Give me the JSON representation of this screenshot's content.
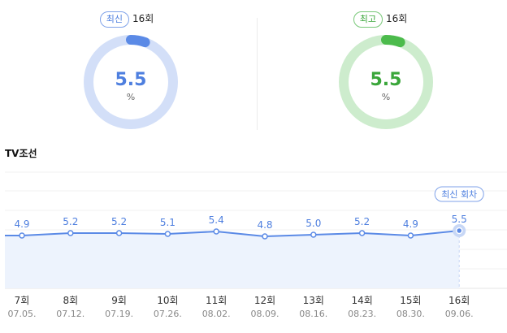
{
  "summary": {
    "latest": {
      "badge": "최신",
      "episode": "16회",
      "value": "5.5",
      "unit": "%",
      "fraction": 0.055,
      "color": "#5b8ae6",
      "track": "#d3dff8"
    },
    "best": {
      "badge": "최고",
      "episode": "16회",
      "value": "5.5",
      "unit": "%",
      "fraction": 0.055,
      "color": "#4cbb4c",
      "track": "#cdeccd"
    }
  },
  "channel": "TV조선",
  "chart_data": {
    "type": "area",
    "categories": [
      "7회",
      "8회",
      "9회",
      "10회",
      "11회",
      "12회",
      "13회",
      "14회",
      "15회",
      "16회"
    ],
    "dates": [
      "07.05.",
      "07.12.",
      "07.19.",
      "07.26.",
      "08.02.",
      "08.09.",
      "08.16.",
      "08.23.",
      "08.30.",
      "09.06."
    ],
    "values": [
      4.9,
      5.2,
      5.2,
      5.1,
      5.4,
      4.8,
      5.0,
      5.2,
      4.9,
      5.5
    ],
    "value_labels": [
      "4.9",
      "5.2",
      "5.2",
      "5.1",
      "5.4",
      "4.8",
      "5.0",
      "5.2",
      "4.9",
      "5.5"
    ],
    "highlight_label": "최신 회차",
    "highlight_index": 9,
    "line_color": "#5b8ae6",
    "fill_color": "#edf3fd",
    "grid": true
  }
}
